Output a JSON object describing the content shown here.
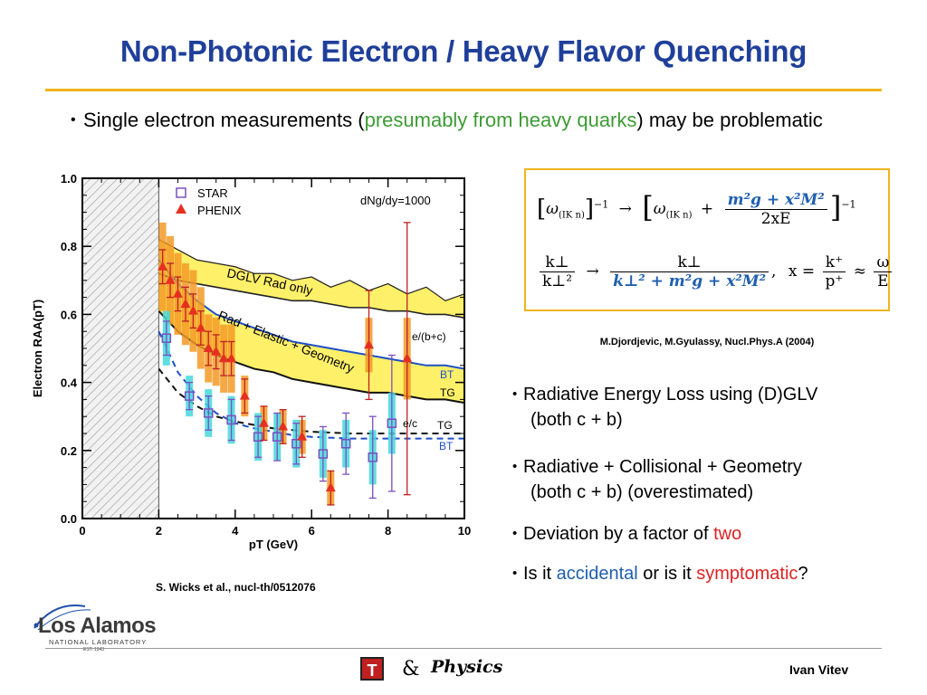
{
  "slide": {
    "title": "Non-Photonic Electron / Heavy Flavor Quenching",
    "intro": {
      "bullet": "•",
      "part1": "Single electron measurements (",
      "part2": "presumably from heavy quarks",
      "part3": ") may be problematic"
    },
    "chart_citation": "S. Wicks et al., nucl-th/0512076",
    "formula": {
      "row1_left_base": "ω",
      "row1_left_sub": "(IK n)",
      "row1_exp": "−1",
      "row1_arrow": "→",
      "row1_right_base": "ω",
      "row1_right_sub": "(IK n)",
      "row1_plus": "+",
      "row1_num": "m²g + x²M²",
      "row1_den": "2xE",
      "row1_exp2": "−1",
      "row2_left_num": "k⊥",
      "row2_left_den": "k⊥²",
      "row2_arrow": "→",
      "row2_right_num": "k⊥",
      "row2_right_den": "k⊥² + m²g + x²M²",
      "row2_comma": ",",
      "row2_x": "x =",
      "row2_xnum": "k⁺",
      "row2_xden": "p⁺",
      "row2_approx": "≈",
      "row2_onum": "ω",
      "row2_oden": "E"
    },
    "formula_reference": "M.Djordjevic, M.Gyulassy, Nucl.Phys.A (2004)",
    "bullets": {
      "b1_line1": "Radiative Energy Loss using (D)GLV",
      "b1_line2": "(both c + b)",
      "b2_line1": "Radiative + Collisional + Geometry",
      "b2_line2": "(both c + b) (overestimated)",
      "b3_part1": "Deviation by a factor of ",
      "b3_part2": "two",
      "b4_part1": "Is it ",
      "b4_part2": "accidental",
      "b4_part3": " or is it ",
      "b4_part4": "symptomatic",
      "b4_part5": "?"
    },
    "footer": {
      "logo_text": "Los Alamos",
      "logo_sub": "NATIONAL LABORATORY",
      "logo_est": "EST. 1943",
      "t_logo": "T",
      "amp": "&",
      "physics_logo": "Physics",
      "author": "Ivan Vitev"
    },
    "colors": {
      "title": "#1f3f9a",
      "rule": "#f0b41e",
      "band": "#fff06a",
      "star": "#7b4fc0",
      "phenix": "#e53020",
      "cyan": "#44d8dc",
      "orange": "#f39a26",
      "theory_blue": "#1f4fc8"
    }
  },
  "chart_data": {
    "type": "scatter",
    "xlabel": "pT (GeV)",
    "ylabel": "Electron RAA(pT)",
    "xlim": [
      0,
      10
    ],
    "ylim": [
      0,
      1.0
    ],
    "xticks": [
      "0",
      "2",
      "4",
      "6",
      "8",
      "10"
    ],
    "yticks": [
      "0.0",
      "0.2",
      "0.4",
      "0.6",
      "0.8",
      "1.0"
    ],
    "hatched_region_x": [
      0,
      2
    ],
    "legend": {
      "star": "STAR",
      "phenix": "PHENIX"
    },
    "annotation_density": "dNg/dy=1000",
    "labels": {
      "dglv": "DGLV Rad only",
      "rad_el": "Rad + Elastic + Geometry",
      "ebc": "e/(b+c)",
      "bt_upper": "BT",
      "tg_upper": "TG",
      "ec": "e/c",
      "tg_lower": "TG",
      "bt_lower": "BT"
    },
    "band_dglv": {
      "x": [
        2.0,
        2.5,
        3.0,
        3.5,
        4.0,
        4.5,
        5.0,
        5.5,
        6.0,
        6.5,
        7.0,
        7.5,
        8.0,
        8.5,
        9.0,
        9.5,
        10.0
      ],
      "upper": [
        0.82,
        0.79,
        0.76,
        0.75,
        0.74,
        0.72,
        0.72,
        0.7,
        0.71,
        0.68,
        0.7,
        0.67,
        0.69,
        0.66,
        0.68,
        0.64,
        0.66
      ],
      "lower": [
        0.72,
        0.7,
        0.69,
        0.68,
        0.67,
        0.66,
        0.65,
        0.64,
        0.64,
        0.63,
        0.62,
        0.62,
        0.61,
        0.61,
        0.6,
        0.6,
        0.59
      ]
    },
    "band_rad_el": {
      "x": [
        2.0,
        2.5,
        3.0,
        3.5,
        4.0,
        4.5,
        5.0,
        5.5,
        6.0,
        6.5,
        7.0,
        7.5,
        8.0,
        8.5,
        9.0,
        9.5,
        10.0
      ],
      "upper": [
        0.76,
        0.69,
        0.64,
        0.6,
        0.58,
        0.56,
        0.54,
        0.52,
        0.51,
        0.5,
        0.49,
        0.48,
        0.47,
        0.46,
        0.45,
        0.45,
        0.44
      ],
      "lower": [
        0.61,
        0.55,
        0.51,
        0.48,
        0.46,
        0.44,
        0.43,
        0.41,
        0.4,
        0.39,
        0.38,
        0.37,
        0.37,
        0.36,
        0.35,
        0.35,
        0.34
      ]
    },
    "curve_blue_dashed": {
      "x": [
        2.0,
        2.5,
        3.0,
        3.5,
        4.0,
        4.5,
        5.0,
        5.5,
        6.0,
        7.0,
        8.0,
        9.0,
        10.0
      ],
      "y": [
        0.55,
        0.43,
        0.36,
        0.31,
        0.28,
        0.265,
        0.255,
        0.245,
        0.24,
        0.235,
        0.235,
        0.235,
        0.235
      ]
    },
    "curve_black_dashed": {
      "x": [
        2.0,
        2.5,
        3.0,
        3.5,
        4.0,
        4.5,
        5.0,
        5.5,
        6.0,
        7.0,
        8.0,
        9.0,
        10.0
      ],
      "y": [
        0.44,
        0.37,
        0.33,
        0.3,
        0.285,
        0.275,
        0.265,
        0.26,
        0.255,
        0.25,
        0.25,
        0.25,
        0.25
      ]
    },
    "series": [
      {
        "name": "STAR",
        "x": [
          2.2,
          2.8,
          3.3,
          3.9,
          4.6,
          5.1,
          5.6,
          6.3,
          6.9,
          7.6,
          8.1
        ],
        "y": [
          0.53,
          0.36,
          0.31,
          0.29,
          0.24,
          0.24,
          0.22,
          0.19,
          0.22,
          0.18,
          0.28
        ],
        "err": [
          0.05,
          0.04,
          0.05,
          0.06,
          0.06,
          0.07,
          0.06,
          0.08,
          0.09,
          0.12,
          0.2
        ],
        "sys": [
          0.08,
          0.06,
          0.07,
          0.07,
          0.07,
          0.07,
          0.07,
          0.07,
          0.07,
          0.08,
          0.09
        ]
      },
      {
        "name": "PHENIX",
        "x": [
          2.1,
          2.3,
          2.5,
          2.7,
          2.9,
          3.1,
          3.3,
          3.5,
          3.7,
          3.9,
          4.25,
          4.75,
          5.25,
          5.75,
          6.5,
          7.5,
          8.5
        ],
        "y": [
          0.74,
          0.7,
          0.66,
          0.63,
          0.61,
          0.56,
          0.5,
          0.49,
          0.47,
          0.47,
          0.36,
          0.28,
          0.27,
          0.24,
          0.09,
          0.51,
          0.47
        ],
        "err": [
          0.05,
          0.05,
          0.05,
          0.05,
          0.05,
          0.05,
          0.05,
          0.05,
          0.05,
          0.05,
          0.05,
          0.05,
          0.05,
          0.06,
          0.05,
          0.16,
          0.4
        ],
        "sys": [
          0.13,
          0.13,
          0.12,
          0.12,
          0.12,
          0.12,
          0.1,
          0.1,
          0.1,
          0.1,
          0.06,
          0.05,
          0.05,
          0.05,
          0.05,
          0.08,
          0.12
        ]
      }
    ]
  }
}
